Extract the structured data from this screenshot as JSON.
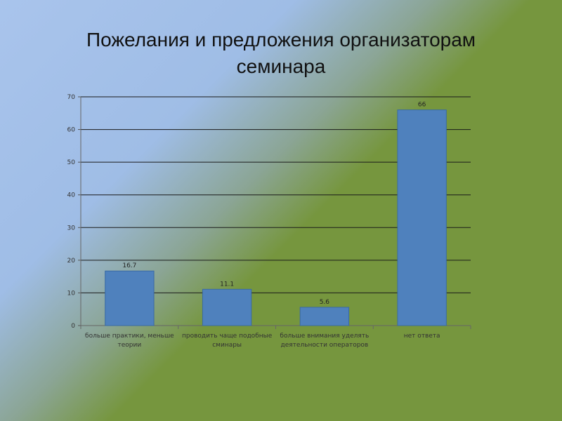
{
  "slide": {
    "title_line1": "Пожелания и предложения организаторам",
    "title_line2": "семинара"
  },
  "chart_data": {
    "type": "bar",
    "categories": [
      [
        "больше практики, меньше",
        "теории"
      ],
      [
        "проводить чаще подобные",
        "сминары"
      ],
      [
        "больше внимания уделять",
        "деятельности операторов"
      ],
      [
        "нет ответа"
      ]
    ],
    "values": [
      16.7,
      11.1,
      5.6,
      66
    ],
    "data_labels": [
      "16.7",
      "11.1",
      "5.6",
      "66"
    ],
    "ylim": [
      0,
      70
    ],
    "yticks": [
      0,
      10,
      20,
      30,
      40,
      50,
      60,
      70
    ],
    "grid": true,
    "bar_color": "#4f81bd",
    "bar_border": "#3a6aa3",
    "gridline_color": "#1a1a1a"
  }
}
